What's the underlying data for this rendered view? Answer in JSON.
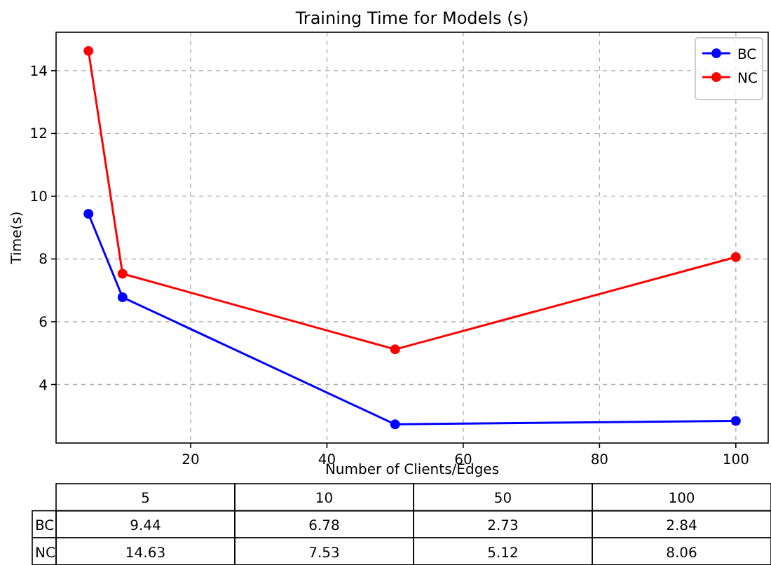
{
  "chart_data": [
    {
      "type": "line",
      "title": "Training Time for Models (s)",
      "xlabel": "Number of Clients/Edges",
      "ylabel": "Time(s)",
      "x": [
        5,
        10,
        50,
        100
      ],
      "series": [
        {
          "name": "BC",
          "color": "#0000ff",
          "values": [
            9.44,
            6.78,
            2.73,
            2.84
          ]
        },
        {
          "name": "NC",
          "color": "#ff0000",
          "values": [
            14.63,
            7.53,
            5.12,
            8.06
          ]
        }
      ],
      "xlim": [
        0.25,
        104.75
      ],
      "xticks": [
        20,
        40,
        60,
        80,
        100
      ],
      "ylim": [
        2.135,
        15.225
      ],
      "yticks": [
        4,
        6,
        8,
        10,
        12,
        14
      ],
      "grid": true,
      "legend": "top right",
      "marker": "circle",
      "line_style": "solid"
    },
    {
      "type": "other",
      "categories": [
        "5",
        "10",
        "50",
        "100"
      ],
      "data_labels": true,
      "series": [
        {
          "name": "BC",
          "values": [
            9.44,
            6.78,
            2.73,
            2.84
          ]
        },
        {
          "name": "NC",
          "values": [
            14.63,
            7.53,
            5.12,
            8.06
          ]
        }
      ]
    }
  ]
}
